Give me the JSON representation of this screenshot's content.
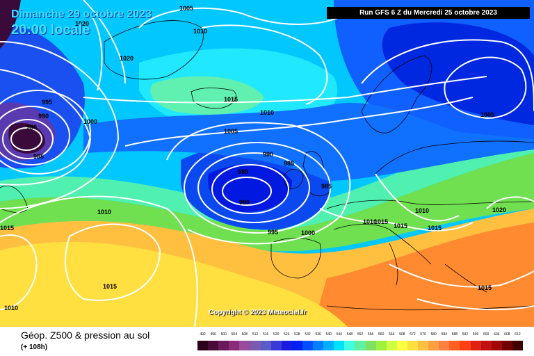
{
  "header": {
    "date_line_1": "Dimanche 29 octobre 2023",
    "date_line_2": "20:00 locale",
    "run_info": "Run GFS 6 Z du Mercredi 25 octobre 2023"
  },
  "copyright": "Copyright © 2023 Meteociel.fr",
  "footer": {
    "title": "Géop. Z500 & pression au sol",
    "forecast_hour": "(+ 108h)"
  },
  "scale": {
    "labels": [
      "492",
      "496",
      "500",
      "504",
      "508",
      "512",
      "516",
      "520",
      "524",
      "528",
      "532",
      "536",
      "540",
      "544",
      "548",
      "552",
      "556",
      "560",
      "564",
      "568",
      "572",
      "576",
      "580",
      "584",
      "588",
      "592",
      "596",
      "600",
      "604",
      "608",
      "612"
    ],
    "colors": [
      "#2b001a",
      "#4a0a3a",
      "#6a1a5a",
      "#8a2a7a",
      "#9a4a9a",
      "#7a5ab0",
      "#5a5ac8",
      "#3a3ad8",
      "#1a1ae0",
      "#0020f0",
      "#0050ff",
      "#0080ff",
      "#00b0ff",
      "#00e0ff",
      "#40ffe0",
      "#60f0a0",
      "#80e060",
      "#a0f040",
      "#d0ff40",
      "#ffff40",
      "#ffe040",
      "#ffc040",
      "#ffa040",
      "#ff8040",
      "#ff6020",
      "#ff4010",
      "#e02010",
      "#c01010",
      "#a00808",
      "#700000",
      "#400000"
    ]
  },
  "isobar_labels": [
    {
      "text": "1005"
    },
    {
      "text": "1010"
    },
    {
      "text": "1020"
    },
    {
      "text": "1020"
    },
    {
      "text": "995"
    },
    {
      "text": "990"
    },
    {
      "text": "980"
    },
    {
      "text": "985"
    },
    {
      "text": "1000"
    },
    {
      "text": "1015"
    },
    {
      "text": "1010"
    },
    {
      "text": "1005"
    },
    {
      "text": "990"
    },
    {
      "text": "985"
    },
    {
      "text": "985"
    },
    {
      "text": "985"
    },
    {
      "text": "980"
    },
    {
      "text": "995"
    },
    {
      "text": "1000"
    },
    {
      "text": "1010"
    },
    {
      "text": "1015"
    },
    {
      "text": "1015"
    },
    {
      "text": "1010"
    },
    {
      "text": "1015"
    },
    {
      "text": "1010"
    },
    {
      "text": "1015"
    },
    {
      "text": "1015"
    },
    {
      "text": "1020"
    },
    {
      "text": "1005"
    },
    {
      "text": "1015"
    },
    {
      "text": "1010"
    }
  ]
}
